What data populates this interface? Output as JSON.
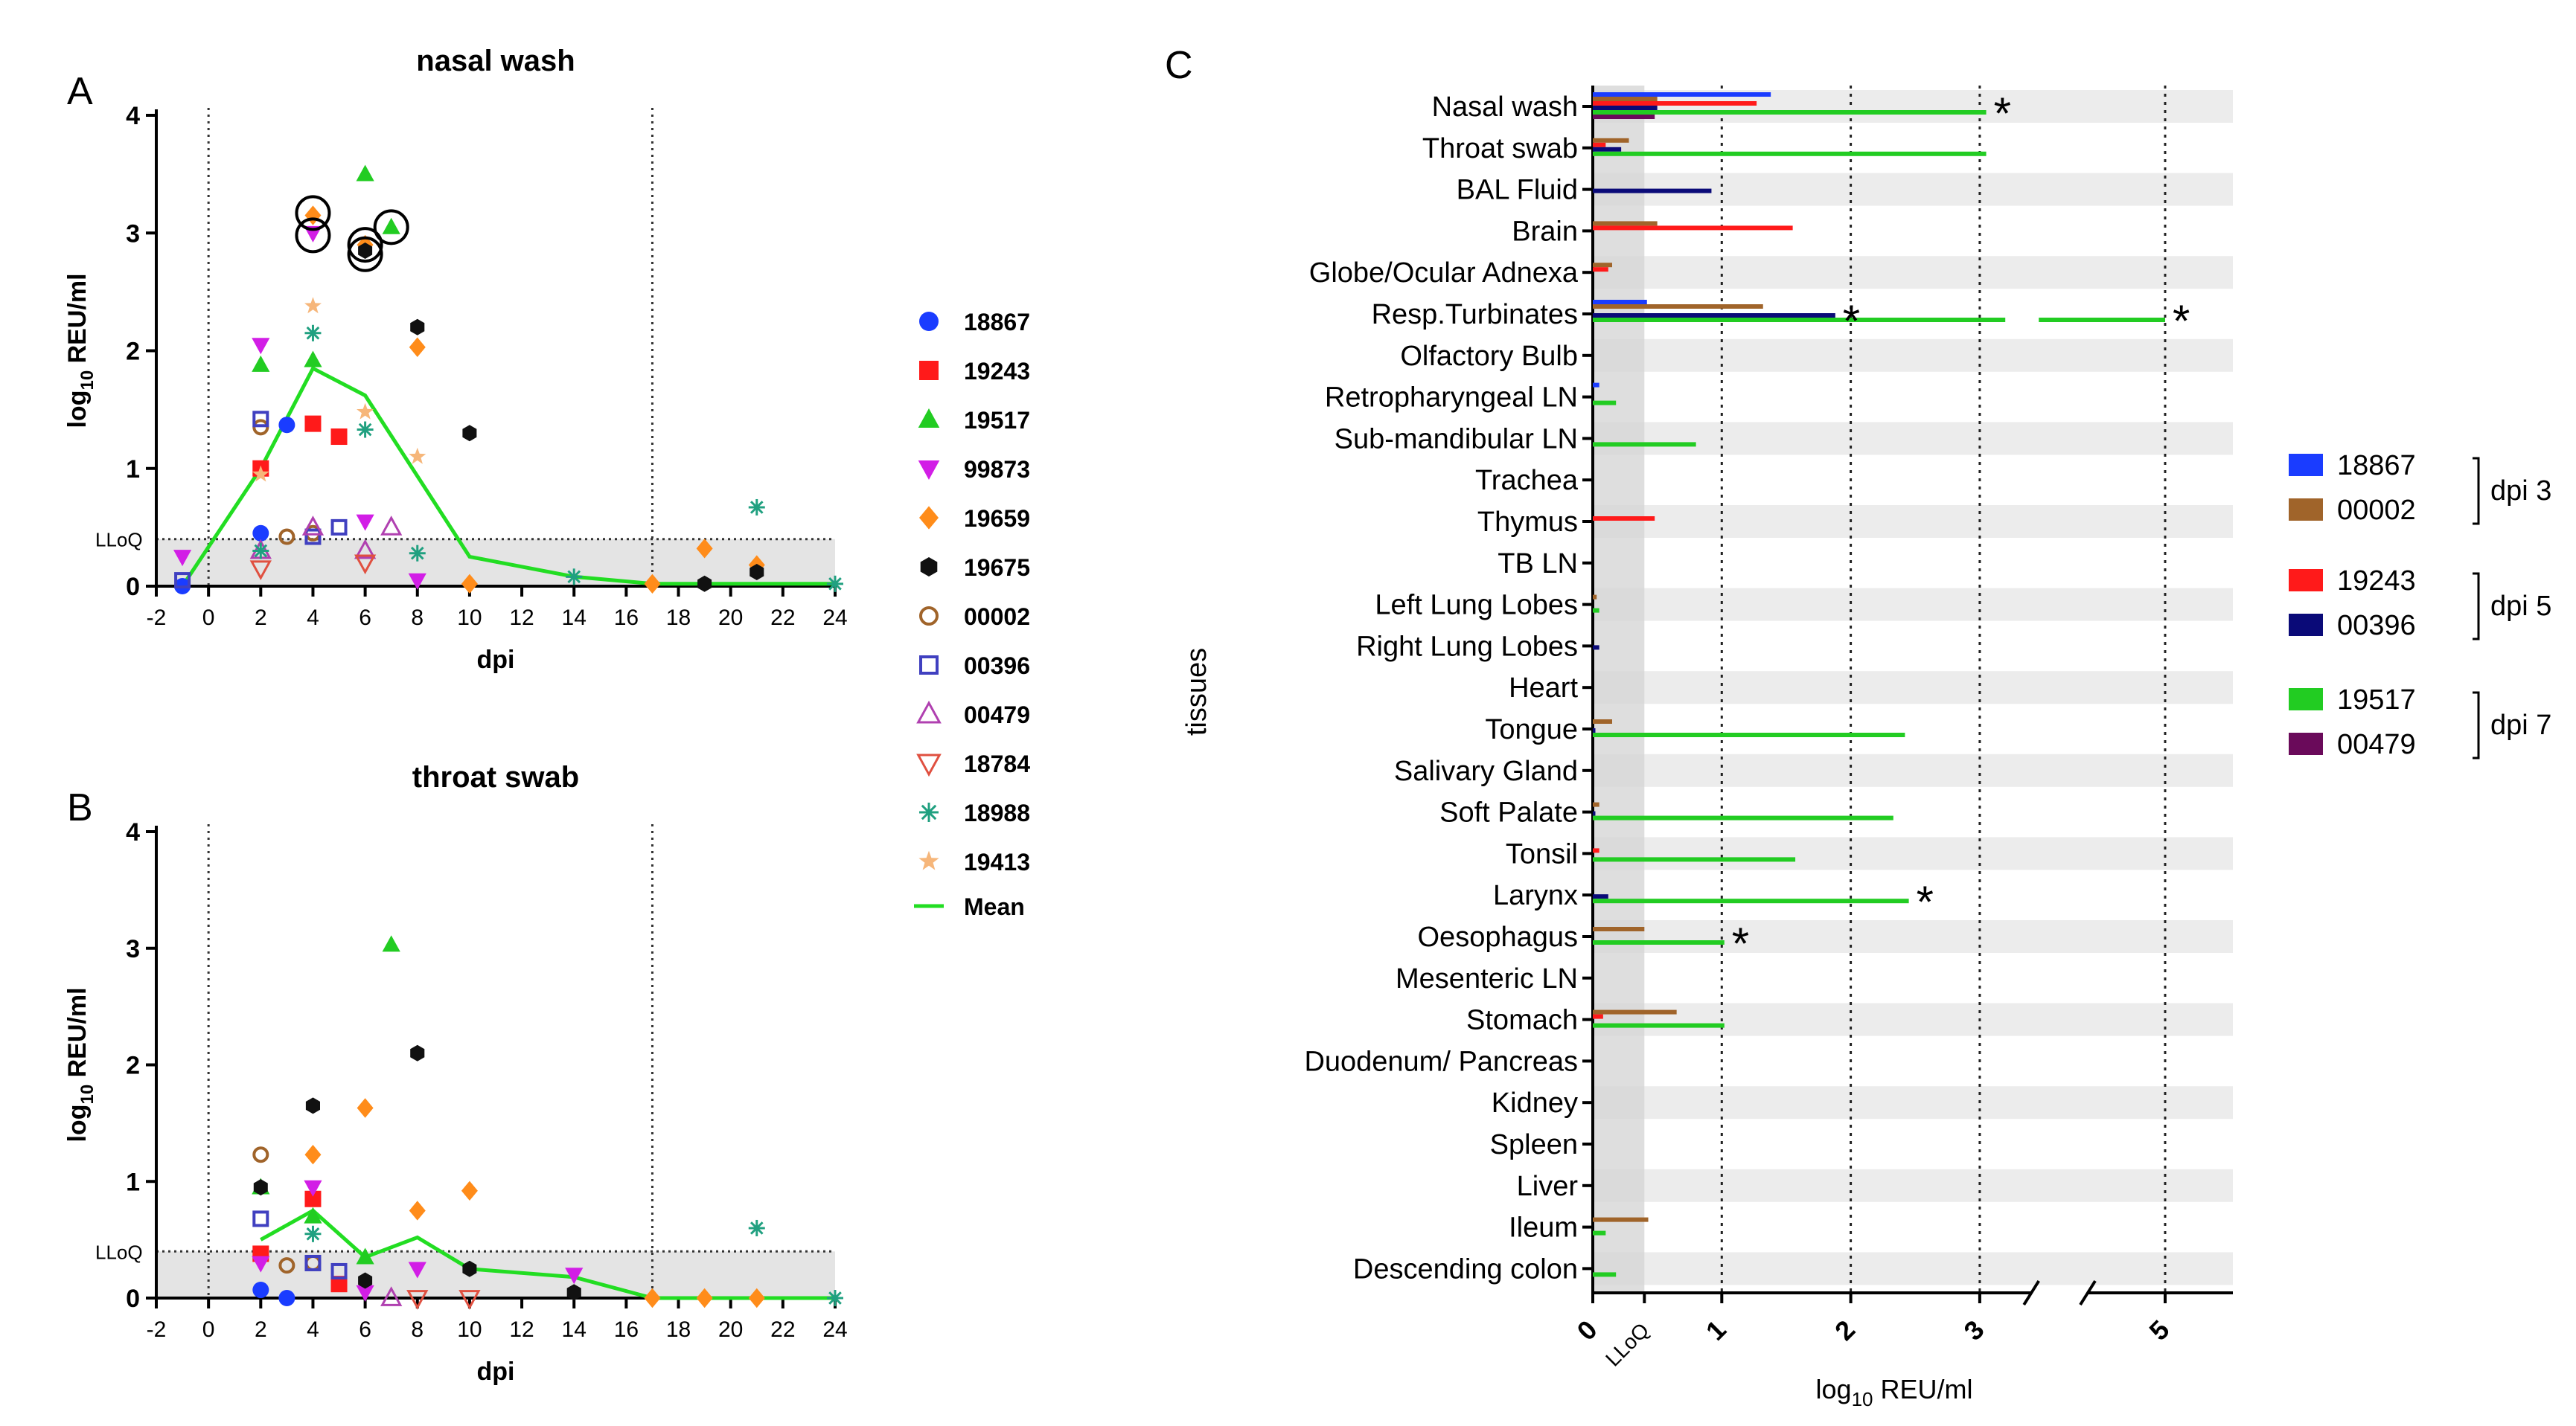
{
  "chart_data": [
    {
      "type": "scatter",
      "panel_label": "A",
      "title": "nasal wash",
      "xlabel": "dpi",
      "ylabel_parts": [
        "log",
        "10",
        " REU/ml"
      ],
      "xlim": [
        -2,
        24
      ],
      "ylim": [
        0,
        4
      ],
      "xticks": [
        "-2",
        "0",
        "2",
        "4",
        "6",
        "8",
        "10",
        "12",
        "14",
        "16",
        "18",
        "20",
        "22",
        "24"
      ],
      "yticks": [
        "0",
        "1",
        "2",
        "3",
        "4"
      ],
      "lloq_label": "LLoQ",
      "lloq_value": 0.4,
      "vlines": [
        0,
        17
      ],
      "series": [
        {
          "name": "18867",
          "points": [
            [
              -1,
              0
            ],
            [
              2,
              0.45
            ],
            [
              3,
              1.37
            ]
          ]
        },
        {
          "name": "19243",
          "points": [
            [
              2,
              1.0
            ],
            [
              4,
              1.38
            ],
            [
              5,
              1.27
            ]
          ]
        },
        {
          "name": "19517",
          "points": [
            [
              2,
              1.88
            ],
            [
              4,
              1.92
            ],
            [
              6,
              3.5
            ],
            [
              7,
              3.05
            ]
          ]
        },
        {
          "name": "99873",
          "points": [
            [
              -1,
              0.25
            ],
            [
              2,
              2.05
            ],
            [
              4,
              3.0
            ],
            [
              6,
              0.55
            ],
            [
              8,
              0.05
            ]
          ]
        },
        {
          "name": "19659",
          "points": [
            [
              4,
              3.15
            ],
            [
              6,
              2.9
            ],
            [
              8,
              2.03
            ],
            [
              10,
              0.02
            ],
            [
              17,
              0.02
            ],
            [
              19,
              0.32
            ],
            [
              21,
              0.18
            ]
          ]
        },
        {
          "name": "19675",
          "points": [
            [
              6,
              2.85
            ],
            [
              8,
              2.2
            ],
            [
              10,
              1.3
            ],
            [
              19,
              0.02
            ],
            [
              21,
              0.12
            ]
          ]
        },
        {
          "name": "00002",
          "points": [
            [
              2,
              1.35
            ],
            [
              3,
              0.42
            ],
            [
              4,
              0.45
            ]
          ]
        },
        {
          "name": "00396",
          "points": [
            [
              -1,
              0.05
            ],
            [
              2,
              1.42
            ],
            [
              4,
              0.42
            ],
            [
              5,
              0.5
            ]
          ]
        },
        {
          "name": "00479",
          "points": [
            [
              2,
              0.3
            ],
            [
              4,
              0.5
            ],
            [
              6,
              0.3
            ],
            [
              7,
              0.5
            ]
          ]
        },
        {
          "name": "18784",
          "points": [
            [
              2,
              0.15
            ],
            [
              6,
              0.2
            ]
          ]
        },
        {
          "name": "18988",
          "points": [
            [
              2,
              0.3
            ],
            [
              4,
              2.15
            ],
            [
              6,
              1.33
            ],
            [
              8,
              0.28
            ],
            [
              14,
              0.08
            ],
            [
              21,
              0.67
            ],
            [
              24,
              0.02
            ]
          ]
        },
        {
          "name": "19413",
          "points": [
            [
              2,
              0.95
            ],
            [
              4,
              2.38
            ],
            [
              6,
              1.48
            ],
            [
              8,
              1.1
            ]
          ]
        }
      ],
      "mean": {
        "name": "Mean",
        "points": [
          [
            -1,
            0
          ],
          [
            2,
            1.0
          ],
          [
            4,
            1.85
          ],
          [
            6,
            1.62
          ],
          [
            10,
            0.25
          ],
          [
            14,
            0.08
          ],
          [
            17,
            0.02
          ],
          [
            19,
            0.02
          ],
          [
            24,
            0.02
          ]
        ]
      },
      "circled_points": [
        [
          4,
          3.17
        ],
        [
          4,
          2.98
        ],
        [
          6,
          2.9
        ],
        [
          6,
          2.82
        ],
        [
          7,
          3.05
        ]
      ]
    },
    {
      "type": "scatter",
      "panel_label": "B",
      "title": "throat swab",
      "xlabel": "dpi",
      "ylabel_parts": [
        "log",
        "10",
        " REU/ml"
      ],
      "xlim": [
        -2,
        24
      ],
      "ylim": [
        0,
        4
      ],
      "xticks": [
        "-2",
        "0",
        "2",
        "4",
        "6",
        "8",
        "10",
        "12",
        "14",
        "16",
        "18",
        "20",
        "22",
        "24"
      ],
      "yticks": [
        "0",
        "1",
        "2",
        "3",
        "4"
      ],
      "lloq_label": "LLoQ",
      "lloq_value": 0.4,
      "vlines": [
        0,
        17
      ],
      "series": [
        {
          "name": "18867",
          "points": [
            [
              2,
              0.07
            ],
            [
              3,
              0.0
            ]
          ]
        },
        {
          "name": "19243",
          "points": [
            [
              2,
              0.38
            ],
            [
              4,
              0.85
            ],
            [
              5,
              0.12
            ]
          ]
        },
        {
          "name": "19517",
          "points": [
            [
              2,
              0.95
            ],
            [
              4,
              0.7
            ],
            [
              6,
              0.35
            ],
            [
              7,
              3.03
            ]
          ]
        },
        {
          "name": "99873",
          "points": [
            [
              2,
              0.3
            ],
            [
              4,
              0.95
            ],
            [
              6,
              0.05
            ],
            [
              8,
              0.25
            ],
            [
              14,
              0.2
            ]
          ]
        },
        {
          "name": "19659",
          "points": [
            [
              4,
              1.23
            ],
            [
              6,
              1.63
            ],
            [
              8,
              0.75
            ],
            [
              10,
              0.92
            ],
            [
              17,
              0.0
            ],
            [
              19,
              0.0
            ],
            [
              21,
              0.0
            ]
          ]
        },
        {
          "name": "19675",
          "points": [
            [
              2,
              0.95
            ],
            [
              4,
              1.65
            ],
            [
              6,
              0.15
            ],
            [
              8,
              2.1
            ],
            [
              10,
              0.25
            ],
            [
              14,
              0.05
            ]
          ]
        },
        {
          "name": "00002",
          "points": [
            [
              2,
              1.23
            ],
            [
              3,
              0.28
            ],
            [
              4,
              0.3
            ]
          ]
        },
        {
          "name": "00396",
          "points": [
            [
              2,
              0.68
            ],
            [
              4,
              0.3
            ],
            [
              5,
              0.23
            ]
          ]
        },
        {
          "name": "00479",
          "points": [
            [
              7,
              0.0
            ]
          ]
        },
        {
          "name": "18784",
          "points": [
            [
              8,
              0.0
            ],
            [
              10,
              0.0
            ]
          ]
        },
        {
          "name": "18988",
          "points": [
            [
              4,
              0.55
            ],
            [
              21,
              0.6
            ],
            [
              24,
              0.0
            ]
          ]
        },
        {
          "name": "19413",
          "points": []
        }
      ],
      "mean": {
        "name": "Mean",
        "points": [
          [
            2,
            0.5
          ],
          [
            4,
            0.75
          ],
          [
            6,
            0.35
          ],
          [
            8,
            0.52
          ],
          [
            10,
            0.25
          ],
          [
            14,
            0.18
          ],
          [
            17,
            0.0
          ],
          [
            24,
            0.0
          ]
        ]
      }
    },
    {
      "type": "bar",
      "orientation": "horizontal",
      "panel_label": "C",
      "xlabel_parts": [
        "log",
        "10",
        " REU/ml"
      ],
      "ylabel": "tissues",
      "xticks": [
        "0",
        "LLoQ",
        "1",
        "2",
        "3",
        "5"
      ],
      "xticks_values": [
        0,
        0.4,
        1,
        2,
        3,
        5
      ],
      "axis_break_between": [
        3.4,
        4.4
      ],
      "lloq_value": 0.4,
      "categories": [
        "Nasal wash",
        "Throat swab",
        "BAL Fluid",
        "Brain",
        "Globe/Ocular Adnexa",
        "Resp.Turbinates",
        "Olfactory Bulb",
        "Retropharyngeal LN",
        "Sub-mandibular LN",
        "Trachea",
        "Thymus",
        "TB LN",
        "Left Lung Lobes",
        "Right Lung Lobes",
        "Heart",
        "Tongue",
        "Salivary Gland",
        "Soft Palate",
        "Tonsil",
        "Larynx",
        "Oesophagus",
        "Mesenteric LN",
        "Stomach",
        "Duodenum/ Pancreas",
        "Kidney",
        "Spleen",
        "Liver",
        "Ileum",
        "Descending colon"
      ],
      "series": [
        {
          "name": "18867",
          "group": "dpi 3",
          "values": [
            1.38,
            0,
            0,
            0,
            0,
            0.42,
            0,
            0.05,
            0,
            0,
            0,
            0,
            0,
            0,
            0,
            0,
            0,
            0,
            0,
            0,
            0,
            0,
            0,
            0,
            0,
            0,
            0,
            0,
            0
          ]
        },
        {
          "name": "00002",
          "group": "dpi 3",
          "values": [
            0.5,
            0.28,
            0,
            0.5,
            0.15,
            1.32,
            0,
            0,
            0,
            0,
            0,
            0,
            0.03,
            0,
            0,
            0.15,
            0,
            0.05,
            0,
            0,
            0.4,
            0,
            0.65,
            0,
            0,
            0,
            0,
            0.43,
            0
          ]
        },
        {
          "name": "19243",
          "group": "dpi 5",
          "values": [
            1.27,
            0.1,
            0,
            1.55,
            0.12,
            0,
            0,
            0,
            0,
            0,
            0.48,
            0,
            0,
            0,
            0,
            0,
            0,
            0,
            0.05,
            0,
            0,
            0,
            0.08,
            0,
            0,
            0,
            0,
            0,
            0
          ]
        },
        {
          "name": "00396",
          "group": "dpi 5",
          "values": [
            0.5,
            0.22,
            0.92,
            0,
            0,
            1.88,
            0,
            0,
            0,
            0,
            0,
            0,
            0,
            0.05,
            0,
            0.02,
            0,
            0.02,
            0,
            0.12,
            0,
            0,
            0,
            0,
            0,
            0,
            0,
            0,
            0
          ]
        },
        {
          "name": "19517",
          "group": "dpi 7",
          "values": [
            3.05,
            3.05,
            0,
            0,
            0,
            5.0,
            0,
            0.18,
            0.8,
            0,
            0,
            0,
            0.05,
            0,
            0,
            2.42,
            0,
            2.33,
            1.57,
            2.45,
            1.02,
            0,
            1.02,
            0,
            0,
            0,
            0,
            0.1,
            0.18
          ]
        },
        {
          "name": "00479",
          "group": "dpi 7",
          "values": [
            0.48,
            0,
            0,
            0,
            0,
            0,
            0,
            0,
            0,
            0,
            0,
            0,
            0,
            0,
            0,
            0,
            0,
            0,
            0,
            0,
            0,
            0,
            0,
            0,
            0,
            0,
            0,
            0,
            0
          ]
        }
      ],
      "significance_marks": [
        {
          "tissue": "Nasal wash",
          "value": 3.05,
          "label": "*"
        },
        {
          "tissue": "Resp.Turbinates",
          "value": 1.88,
          "label": "*"
        },
        {
          "tissue": "Resp.Turbinates",
          "value": 5.0,
          "label": "*"
        },
        {
          "tissue": "Larynx",
          "value": 2.45,
          "label": "*"
        },
        {
          "tissue": "Oesophagus",
          "value": 1.02,
          "label": "*"
        }
      ],
      "legend_groups": [
        "dpi 3",
        "dpi 5",
        "dpi 7"
      ]
    }
  ],
  "legend_ab": [
    {
      "name": "18867",
      "color": "#1a3cff",
      "marker": "circle-filled"
    },
    {
      "name": "19243",
      "color": "#ff1a1a",
      "marker": "square-filled"
    },
    {
      "name": "19517",
      "color": "#22cc22",
      "marker": "triangle-filled"
    },
    {
      "name": "99873",
      "color": "#d21ee6",
      "marker": "triangle-down-filled"
    },
    {
      "name": "19659",
      "color": "#ff8c1a",
      "marker": "diamond-filled"
    },
    {
      "name": "19675",
      "color": "#111111",
      "marker": "hexagon-filled"
    },
    {
      "name": "00002",
      "color": "#a0642a",
      "marker": "circle-open"
    },
    {
      "name": "00396",
      "color": "#4040c0",
      "marker": "square-open"
    },
    {
      "name": "00479",
      "color": "#b040b0",
      "marker": "triangle-open"
    },
    {
      "name": "18784",
      "color": "#e05040",
      "marker": "triangle-down-open"
    },
    {
      "name": "18988",
      "color": "#20a080",
      "marker": "asterisk"
    },
    {
      "name": "19413",
      "color": "#f6b67a",
      "marker": "star"
    },
    {
      "name": "Mean",
      "color": "#22dd22",
      "marker": "line"
    }
  ],
  "legend_c_colors": {
    "18867": "#1a3cff",
    "00002": "#a0642a",
    "19243": "#ff1a1a",
    "00396": "#0a0a78",
    "19517": "#22cc22",
    "00479": "#6a0a5a"
  }
}
